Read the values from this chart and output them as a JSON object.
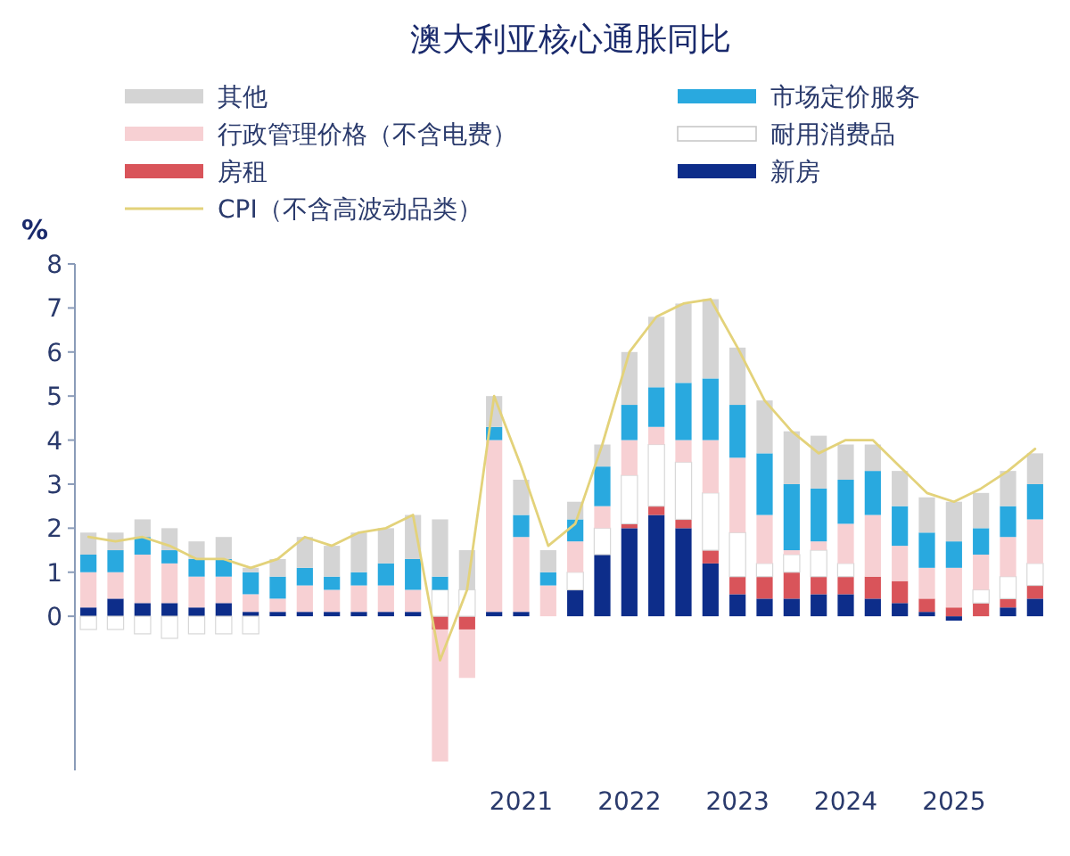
{
  "chart_data": {
    "type": "bar",
    "stacked": true,
    "title": "澳大利亚核心通胀同比",
    "ylabel": "%",
    "legend": "top",
    "marker": "none",
    "line_style": "solid",
    "categories": [
      null,
      null,
      null,
      null,
      null,
      null,
      null,
      null,
      null,
      null,
      null,
      null,
      null,
      null,
      null,
      null,
      "2021",
      null,
      null,
      null,
      "2022",
      null,
      null,
      null,
      "2023",
      null,
      null,
      null,
      "2024",
      null,
      null,
      null,
      "2025",
      null,
      null,
      null
    ],
    "ylim": [
      -3.5,
      8
    ],
    "yticks": [
      0,
      1,
      2,
      3,
      4,
      5,
      6,
      7,
      8
    ],
    "series": [
      {
        "name": "新房",
        "color": "#0d2d8a",
        "values": [
          0.2,
          0.4,
          0.3,
          0.3,
          0.2,
          0.3,
          0.1,
          0.1,
          0.1,
          0.1,
          0.1,
          0.1,
          0.1,
          0,
          0,
          0.1,
          0.1,
          0,
          0.6,
          1.4,
          2.0,
          2.3,
          2.0,
          1.2,
          0.5,
          0.4,
          0.4,
          0.5,
          0.5,
          0.4,
          0.3,
          0.1,
          -0.1,
          0,
          0.2,
          0.4
        ]
      },
      {
        "name": "房租",
        "color": "#d9545a",
        "values": [
          0,
          0,
          0,
          0,
          0,
          0,
          0,
          0,
          0,
          0,
          0,
          0,
          0,
          -0.3,
          -0.3,
          0,
          0,
          0,
          0,
          0,
          0.1,
          0.2,
          0.2,
          0.3,
          0.4,
          0.5,
          0.6,
          0.4,
          0.4,
          0.5,
          0.5,
          0.3,
          0.2,
          0.3,
          0.2,
          0.3
        ]
      },
      {
        "name": "耐用消费品",
        "color": "#ffffff",
        "values": [
          -0.3,
          -0.3,
          -0.4,
          -0.5,
          -0.4,
          -0.4,
          -0.4,
          0,
          0,
          0,
          0,
          0,
          0,
          0.6,
          0.6,
          0,
          0,
          0,
          0.4,
          0.6,
          1.1,
          1.4,
          1.3,
          1.3,
          1.0,
          0.3,
          0.4,
          0.6,
          0.3,
          0,
          0,
          0,
          0,
          0.3,
          0.5,
          0.5
        ]
      },
      {
        "name": "行政管理价格（不含电费）",
        "color": "#f7d0d3",
        "values": [
          0.8,
          0.6,
          1.1,
          0.9,
          0.7,
          0.6,
          0.4,
          0.3,
          0.6,
          0.5,
          0.6,
          0.6,
          0.5,
          -3.0,
          -1.1,
          3.9,
          1.7,
          0.7,
          0.7,
          0.5,
          0.8,
          0.4,
          0.5,
          1.2,
          1.7,
          1.1,
          0.1,
          0.2,
          0.9,
          1.4,
          0.8,
          0.7,
          0.9,
          0.8,
          0.9,
          1.0
        ]
      },
      {
        "name": "市场定价服务",
        "color": "#29a9df",
        "values": [
          0.4,
          0.5,
          0.4,
          0.3,
          0.4,
          0.4,
          0.5,
          0.5,
          0.4,
          0.3,
          0.3,
          0.5,
          0.7,
          0.3,
          0,
          0.3,
          0.5,
          0.3,
          0.5,
          0.9,
          0.8,
          0.9,
          1.3,
          1.4,
          1.2,
          1.4,
          1.5,
          1.2,
          1.0,
          1.0,
          0.9,
          0.8,
          0.6,
          0.6,
          0.7,
          0.8
        ]
      },
      {
        "name": "其他",
        "color": "#d4d4d4",
        "values": [
          0.5,
          0.4,
          0.4,
          0.5,
          0.4,
          0.5,
          0.1,
          0.4,
          0.7,
          0.7,
          0.9,
          0.8,
          1.0,
          1.3,
          0.9,
          0.7,
          0.8,
          0.5,
          0.4,
          0.5,
          1.2,
          1.6,
          1.8,
          1.8,
          1.3,
          1.2,
          1.2,
          1.2,
          0.8,
          0.6,
          0.8,
          0.8,
          0.9,
          0.8,
          0.8,
          0.7
        ]
      },
      {
        "name": "CPI（不含高波动品类）",
        "type": "line",
        "color": "#e3d27a",
        "values": [
          1.8,
          1.7,
          1.8,
          1.6,
          1.3,
          1.3,
          1.1,
          1.3,
          1.8,
          1.6,
          1.9,
          2.0,
          2.3,
          -1.0,
          0.6,
          5.0,
          3.4,
          1.6,
          2.1,
          3.9,
          6.0,
          6.8,
          7.1,
          7.2,
          6.1,
          4.9,
          4.2,
          3.7,
          4.0,
          4.0,
          3.4,
          2.8,
          2.6,
          2.9,
          3.3,
          3.8
        ]
      }
    ]
  }
}
